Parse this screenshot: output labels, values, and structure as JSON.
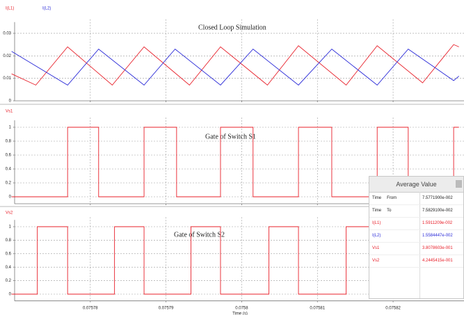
{
  "chart_data": [
    {
      "type": "line",
      "title": "Closed Loop Simulation",
      "series": [
        {
          "name": "I(L1)",
          "color": "#e8202a",
          "x": [
            0.0757696,
            0.0757728,
            0.075777,
            0.0757829,
            0.0757871,
            0.0757931,
            0.0757972,
            0.0758034,
            0.0758075,
            0.0758138,
            0.0758179,
            0.0758239,
            0.075828,
            0.0758287
          ],
          "values": [
            0.012,
            0.007,
            0.024,
            0.007,
            0.024,
            0.007,
            0.024,
            0.007,
            0.0245,
            0.007,
            0.0245,
            0.008,
            0.025,
            0.024
          ]
        },
        {
          "name": "I(L2)",
          "color": "#2b2bd8",
          "x": [
            0.0757696,
            0.075777,
            0.0757811,
            0.0757871,
            0.0757912,
            0.0757972,
            0.0758015,
            0.0758075,
            0.0758119,
            0.0758179,
            0.075822,
            0.075828,
            0.0758287
          ],
          "values": [
            0.022,
            0.007,
            0.023,
            0.007,
            0.023,
            0.007,
            0.023,
            0.007,
            0.023,
            0.007,
            0.023,
            0.009,
            0.011
          ]
        }
      ],
      "xlim": [
        0.07577,
        0.075829
      ],
      "xticks": [
        0.07578,
        0.07579,
        0.0758,
        0.07581,
        0.07582
      ],
      "ylim": [
        0,
        0.035
      ],
      "yticks": [
        0,
        0.01,
        0.02,
        0.03
      ],
      "grid": true
    },
    {
      "type": "step",
      "title": "Gate of Switch S1",
      "series": [
        {
          "name": "Vs1",
          "color": "#e8202a",
          "x": [
            0.0757696,
            0.075777,
            0.0757811,
            0.0757871,
            0.0757914,
            0.0757972,
            0.0758015,
            0.0758075,
            0.0758119,
            0.0758179,
            0.075822,
            0.075828,
            0.0758287
          ],
          "values": [
            0,
            1,
            0,
            1,
            0,
            1,
            0,
            1,
            0,
            1,
            0,
            1,
            1
          ]
        }
      ],
      "xlim": [
        0.07577,
        0.075829
      ],
      "xticks": [
        0.07578,
        0.07579,
        0.0758,
        0.07581,
        0.07582
      ],
      "ylim": [
        -0.1,
        1.1
      ],
      "yticks": [
        0,
        0.2,
        0.4,
        0.6,
        0.8,
        1
      ],
      "grid": true
    },
    {
      "type": "step",
      "title": "Gate of Switch S2",
      "series": [
        {
          "name": "Vs2",
          "color": "#e8202a",
          "x": [
            0.0757696,
            0.075773,
            0.075777,
            0.0757832,
            0.0757871,
            0.0757933,
            0.0757972,
            0.0758036,
            0.0758075,
            0.0758138,
            0.0758179,
            0.0758239,
            0.075828,
            0.0758287
          ],
          "values": [
            0,
            1,
            0,
            1,
            0,
            1,
            0,
            1,
            0,
            1,
            0,
            1,
            0,
            0
          ]
        }
      ],
      "xlim": [
        0.07577,
        0.075829
      ],
      "xticks": [
        0.07578,
        0.07579,
        0.0758,
        0.07581,
        0.07582
      ],
      "xtick_labels": true,
      "xlabel": "Time (s)",
      "ylim": [
        -0.1,
        1.1
      ],
      "yticks": [
        0,
        0.2,
        0.4,
        0.6,
        0.8,
        1
      ],
      "grid": true
    }
  ],
  "average_value": {
    "title": "Average Value",
    "rows": [
      {
        "label": [
          "Time",
          "From"
        ],
        "value": "7.5771900e-002",
        "color": "#222222"
      },
      {
        "label": [
          "Time",
          "To"
        ],
        "value": "7.5829100e-002",
        "color": "#222222"
      },
      {
        "label": [
          "I(L1)"
        ],
        "value": "1.5911209e-002",
        "color": "#e8202a"
      },
      {
        "label": [
          "I(L2)"
        ],
        "value": "1.5584447e-002",
        "color": "#2b2bd8"
      },
      {
        "label": [
          "Vs1"
        ],
        "value": "3.8078603e-001",
        "color": "#e8202a"
      },
      {
        "label": [
          "Vs2"
        ],
        "value": "4.2445415e-001",
        "color": "#e8202a"
      }
    ]
  }
}
